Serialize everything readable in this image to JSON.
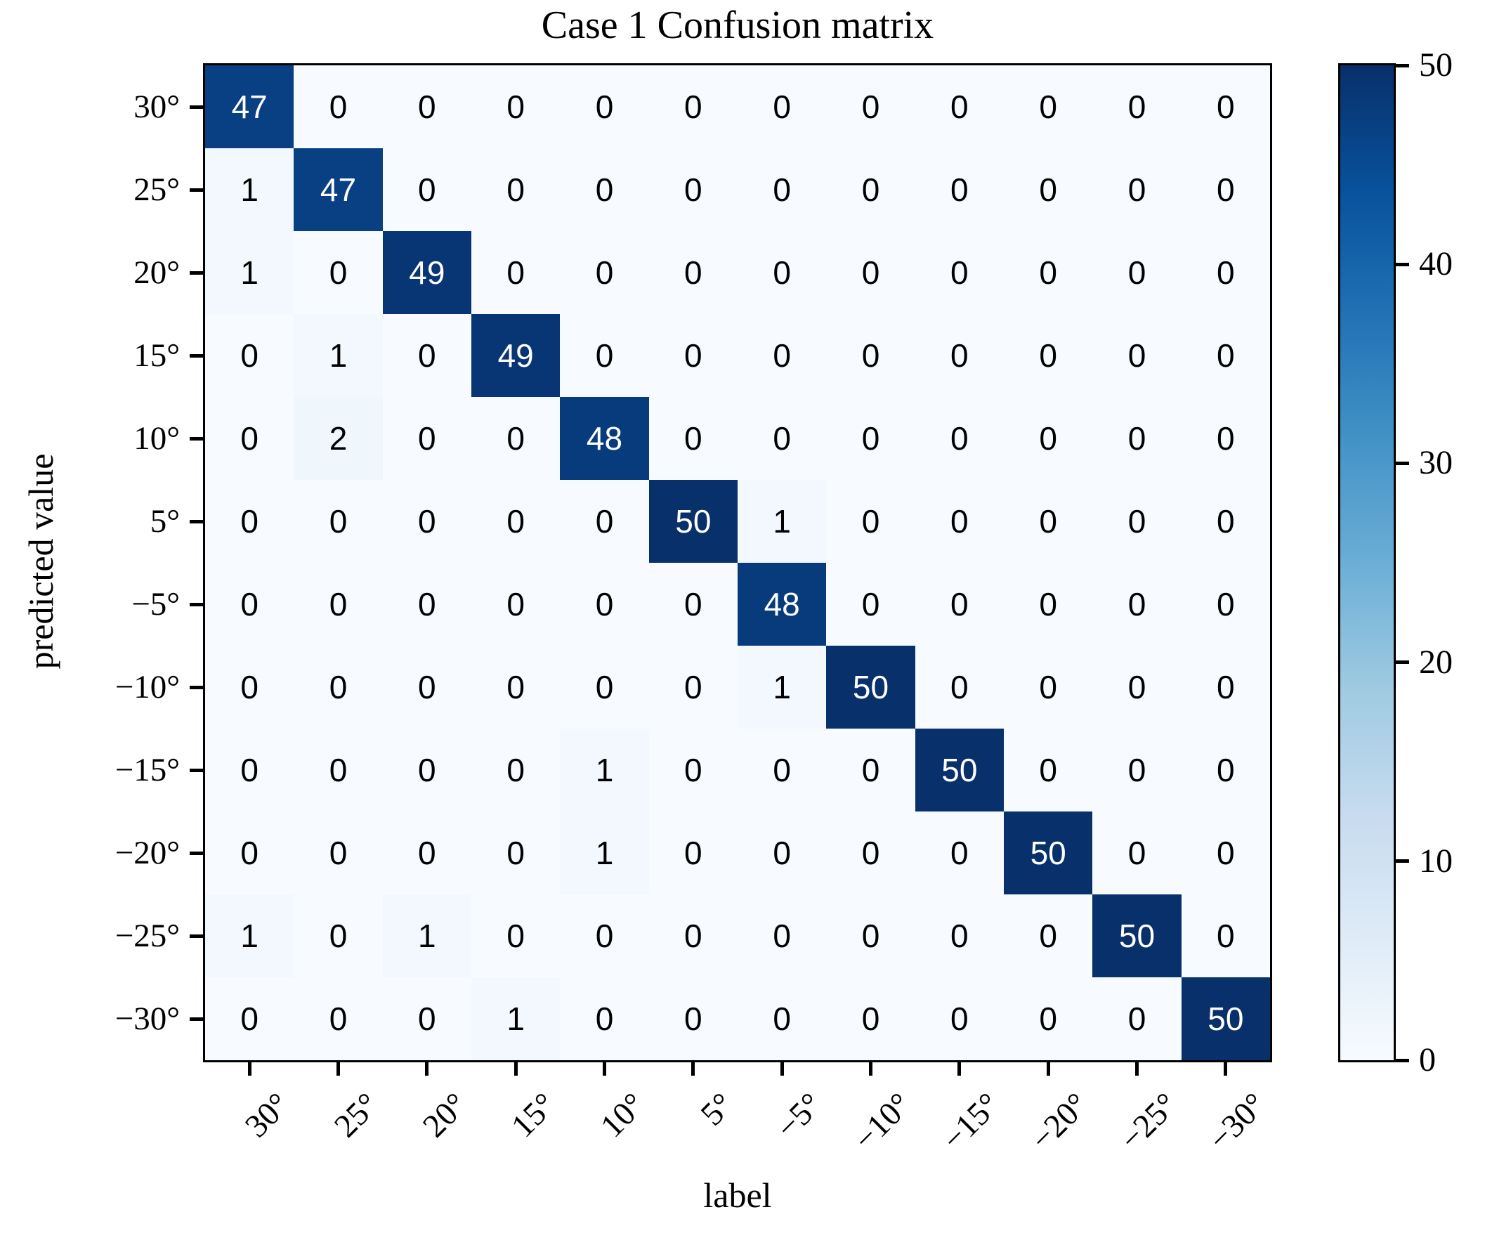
{
  "chart_data": {
    "type": "heatmap",
    "title": "Case 1 Confusion matrix",
    "xlabel": "label",
    "ylabel": "predicted value",
    "x_labels": [
      "30°",
      "25°",
      "20°",
      "15°",
      "10°",
      "5°",
      "−5°",
      "−10°",
      "−15°",
      "−20°",
      "−25°",
      "−30°"
    ],
    "y_labels": [
      "30°",
      "25°",
      "20°",
      "15°",
      "10°",
      "5°",
      "−5°",
      "−10°",
      "−15°",
      "−20°",
      "−25°",
      "−30°"
    ],
    "matrix": [
      [
        47,
        0,
        0,
        0,
        0,
        0,
        0,
        0,
        0,
        0,
        0,
        0
      ],
      [
        1,
        47,
        0,
        0,
        0,
        0,
        0,
        0,
        0,
        0,
        0,
        0
      ],
      [
        1,
        0,
        49,
        0,
        0,
        0,
        0,
        0,
        0,
        0,
        0,
        0
      ],
      [
        0,
        1,
        0,
        49,
        0,
        0,
        0,
        0,
        0,
        0,
        0,
        0
      ],
      [
        0,
        2,
        0,
        0,
        48,
        0,
        0,
        0,
        0,
        0,
        0,
        0
      ],
      [
        0,
        0,
        0,
        0,
        0,
        50,
        1,
        0,
        0,
        0,
        0,
        0
      ],
      [
        0,
        0,
        0,
        0,
        0,
        0,
        48,
        0,
        0,
        0,
        0,
        0
      ],
      [
        0,
        0,
        0,
        0,
        0,
        0,
        1,
        50,
        0,
        0,
        0,
        0
      ],
      [
        0,
        0,
        0,
        0,
        1,
        0,
        0,
        0,
        50,
        0,
        0,
        0
      ],
      [
        0,
        0,
        0,
        0,
        1,
        0,
        0,
        0,
        0,
        50,
        0,
        0
      ],
      [
        1,
        0,
        1,
        0,
        0,
        0,
        0,
        0,
        0,
        0,
        50,
        0
      ],
      [
        0,
        0,
        0,
        1,
        0,
        0,
        0,
        0,
        0,
        0,
        0,
        50
      ]
    ],
    "vmin": 0,
    "vmax": 50,
    "colormap": "Blues",
    "colormap_stops": [
      "#f7fbff",
      "#deebf7",
      "#c6dbef",
      "#9ecae1",
      "#6baed6",
      "#4292c6",
      "#2171b5",
      "#08519c",
      "#08306b"
    ],
    "colorbar_ticks": [
      0,
      10,
      20,
      30,
      40,
      50
    ],
    "x_tick_rotation": 45,
    "grid": false,
    "legend_position": "colorbar-right",
    "colors": {
      "annotation_dark_text": "#000000",
      "annotation_light_text": "#ffffff",
      "frame": "#000000",
      "figure_background": "#ffffff"
    }
  }
}
